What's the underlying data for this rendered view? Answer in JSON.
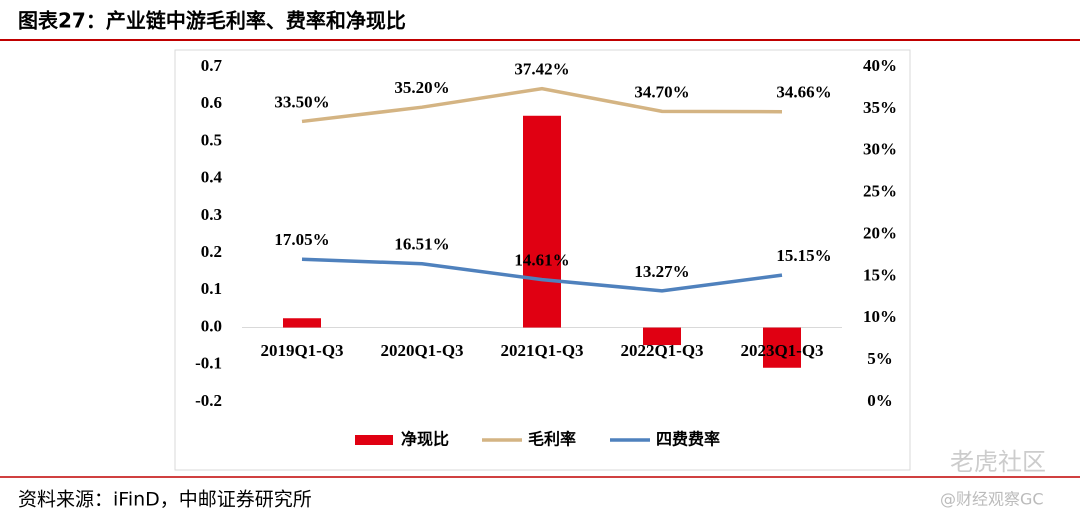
{
  "header": {
    "title": "图表27：产业链中游毛利率、费率和净现比"
  },
  "chart_data": {
    "type": "bar-line",
    "categories": [
      "2019Q1-Q3",
      "2020Q1-Q3",
      "2021Q1-Q3",
      "2022Q1-Q3",
      "2023Q1-Q3"
    ],
    "series": [
      {
        "name": "净现比",
        "type": "bar",
        "color": "#e00012",
        "values": [
          0.025,
          0.0,
          0.569,
          -0.047,
          -0.108
        ]
      },
      {
        "name": "毛利率",
        "type": "line",
        "axis": "y2",
        "color": "#d4b483",
        "values": [
          33.5,
          35.2,
          37.42,
          34.7,
          34.66
        ],
        "value_labels": [
          "33.50%",
          "35.20%",
          "37.42%",
          "34.70%",
          "34.66%"
        ]
      },
      {
        "name": "四费费率",
        "type": "line",
        "axis": "y2",
        "color": "#4f81bd",
        "values": [
          17.05,
          16.51,
          14.61,
          13.27,
          15.15
        ],
        "value_labels": [
          "17.05%",
          "16.51%",
          "14.61%",
          "13.27%",
          "15.15%"
        ]
      }
    ],
    "ylim": [
      -0.2,
      0.7
    ],
    "yticks": [
      0.7,
      0.6,
      0.5,
      0.4,
      0.3,
      0.2,
      0.1,
      {
        "value": 0,
        "label": "0.0"
      },
      -0.1,
      -0.2
    ],
    "y2lim": [
      0,
      40
    ],
    "y2ticks": [
      {
        "value": 40,
        "label": "40%"
      },
      {
        "value": 35,
        "label": "35%"
      },
      {
        "value": 30,
        "label": "30%"
      },
      {
        "value": 25,
        "label": "25%"
      },
      {
        "value": 20,
        "label": "20%"
      },
      {
        "value": 15,
        "label": "15%"
      },
      {
        "value": 10,
        "label": "10%"
      },
      {
        "value": 5,
        "label": "5%"
      },
      {
        "value": 0,
        "label": "0%"
      }
    ],
    "legend": "bottom"
  },
  "source": "资料来源：iFinD，中邮证券研究所",
  "watermarks": [
    "老虎社区",
    "@财经观察GC"
  ]
}
